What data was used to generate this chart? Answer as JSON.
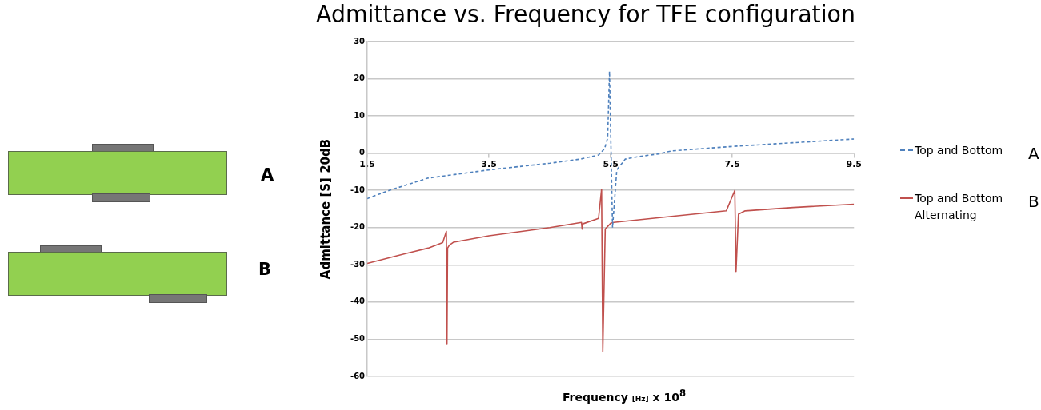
{
  "chart_data": {
    "type": "line",
    "title": "Admittance vs. Frequency for TFE configuration",
    "xlabel": "Frequency $_{[Hz]}$ x 10$^{8}$",
    "ylabel": "Admittance [S] 20dB",
    "xlim": [
      1.5,
      9.5
    ],
    "xticks": [
      1.5,
      3.5,
      5.5,
      7.5,
      9.5
    ],
    "ylim": [
      -60,
      30
    ],
    "yticks": [
      -60,
      -50,
      -40,
      -30,
      -20,
      -10,
      0,
      10,
      20,
      30
    ],
    "grid": "y",
    "legend": "right",
    "marker": "none",
    "annotations": [
      "A",
      "B"
    ],
    "series": [
      {
        "name": "Top and Bottom",
        "color": "#4f81bd",
        "line_style": "dashed",
        "x": [
          1.5,
          1.86,
          2.5,
          3.5,
          4.5,
          5.0,
          5.3,
          5.4,
          5.45,
          5.48,
          5.53,
          5.6,
          5.74,
          5.97,
          6.29,
          6.5,
          7.5,
          8.5,
          9.5
        ],
        "values": [
          -12.2,
          -10.0,
          -6.7,
          -4.5,
          -2.7,
          -1.6,
          -0.5,
          1.2,
          4.1,
          22,
          -20,
          -4.5,
          -1.6,
          -0.9,
          -0.2,
          0.6,
          1.8,
          2.8,
          3.8
        ]
      },
      {
        "name": "Top and Bottom Alternating",
        "color": "#c0504d",
        "line_style": "solid",
        "x": [
          1.5,
          2.0,
          2.5,
          2.74,
          2.8,
          2.81,
          2.82,
          2.85,
          2.92,
          3.5,
          4.5,
          5.02,
          5.03,
          5.04,
          5.3,
          5.35,
          5.37,
          5.41,
          5.5,
          5.55,
          6.5,
          7.4,
          7.54,
          7.56,
          7.6,
          7.71,
          8.5,
          9.5
        ],
        "values": [
          -29.6,
          -27.5,
          -25.5,
          -24.0,
          -21.0,
          -51.4,
          -25.5,
          -24.7,
          -23.9,
          -22.2,
          -20.0,
          -18.6,
          -20.4,
          -19.0,
          -17.5,
          -9.7,
          -53.4,
          -20.4,
          -18.8,
          -18.6,
          -17.0,
          -15.5,
          -10.0,
          -31.8,
          -16.4,
          -15.5,
          -14.6,
          -13.7
        ]
      }
    ]
  }
}
